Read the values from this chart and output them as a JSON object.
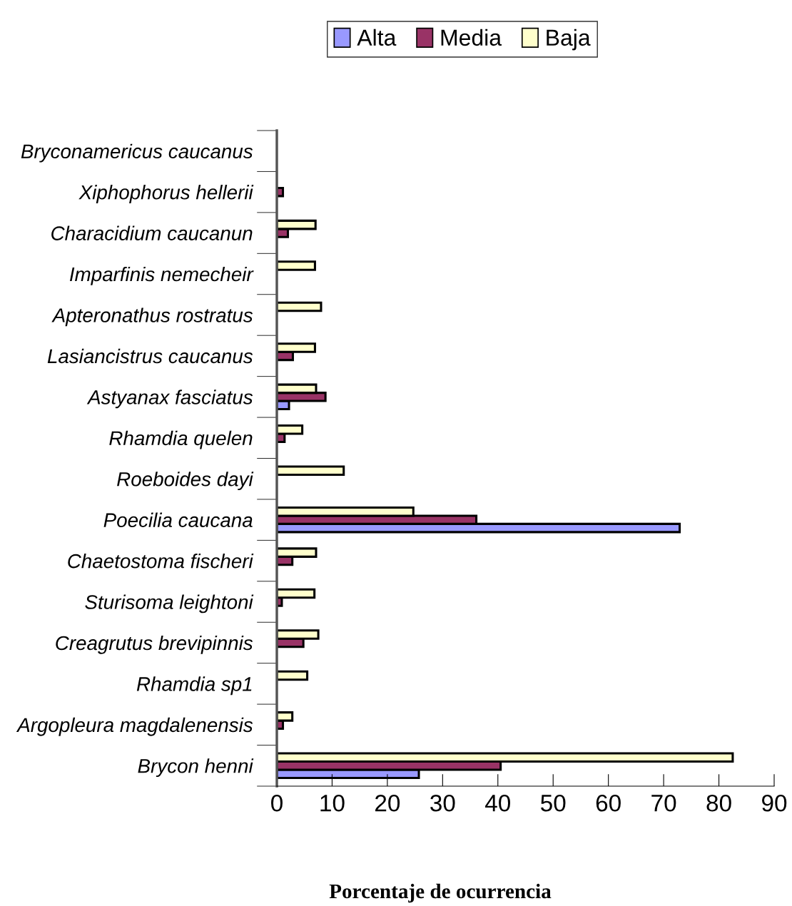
{
  "chart_data": {
    "type": "bar",
    "orientation": "horizontal",
    "xlabel": "Porcentaje de ocurrencia",
    "categories": [
      "Bryconamericus caucanus",
      "Xiphophorus hellerii",
      "Characidium caucanun",
      "Imparfinis nemecheir",
      "Apteronathus rostratus",
      "Lasiancistrus caucanus",
      "Astyanax fasciatus",
      "Rhamdia quelen",
      "Roeboides dayi",
      "Poecilia caucana",
      "Chaetostoma fischeri",
      "Sturisoma leightoni",
      "Creagrutus brevipinnis",
      "Rhamdia sp1",
      "Argopleura magdalenensis",
      "Brycon henni"
    ],
    "series": [
      {
        "name": "Alta",
        "color": "#9999ff",
        "values": [
          0,
          0,
          0,
          0,
          0,
          0,
          2.2,
          0,
          0,
          72.9,
          0,
          0,
          0,
          0,
          0,
          25.7
        ]
      },
      {
        "name": "Media",
        "color": "#993366",
        "values": [
          0,
          1.1,
          2.0,
          0,
          0,
          2.9,
          8.8,
          1.4,
          0,
          36.1,
          2.8,
          0.9,
          4.8,
          0,
          1.1,
          40.5
        ]
      },
      {
        "name": "Baja",
        "color": "#ffffcc",
        "values": [
          0,
          0,
          7.0,
          6.9,
          8.0,
          6.9,
          7.1,
          4.6,
          12.1,
          24.7,
          7.1,
          6.8,
          7.5,
          5.5,
          2.8,
          82.5
        ]
      }
    ],
    "xlim": [
      0,
      90
    ],
    "xticks": [
      0,
      10,
      20,
      30,
      40,
      50,
      60,
      70,
      80,
      90
    ],
    "legend": "top",
    "grid": false
  }
}
